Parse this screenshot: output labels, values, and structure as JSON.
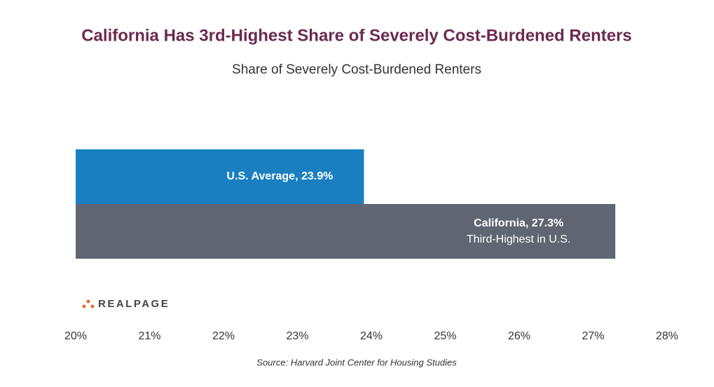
{
  "chart_data": {
    "type": "barh",
    "title": "California Has 3rd-Highest Share of Severely Cost-Burdened Renters",
    "subtitle": "Share of Severely Cost-Burdened Renters",
    "values": [
      23.9,
      27.3
    ],
    "value_labels": [
      "U.S. Average, 23.9%",
      "California, 27.3%"
    ],
    "colors": [
      "#1a7fc1",
      "#5f6672"
    ],
    "annotation": "Third-Highest in U.S.",
    "xlim": [
      20,
      28
    ],
    "xticks": [
      {
        "value": 20,
        "label": "20%"
      },
      {
        "value": 21,
        "label": "21%"
      },
      {
        "value": 22,
        "label": "22%"
      },
      {
        "value": 23,
        "label": "23%"
      },
      {
        "value": 24,
        "label": "24%"
      },
      {
        "value": 25,
        "label": "25%"
      },
      {
        "value": 26,
        "label": "26%"
      },
      {
        "value": 27,
        "label": "27%"
      },
      {
        "value": 28,
        "label": "28%"
      }
    ],
    "logo": "REALPAGE",
    "source": "Source: Harvard Joint Center for Housing Studies"
  }
}
